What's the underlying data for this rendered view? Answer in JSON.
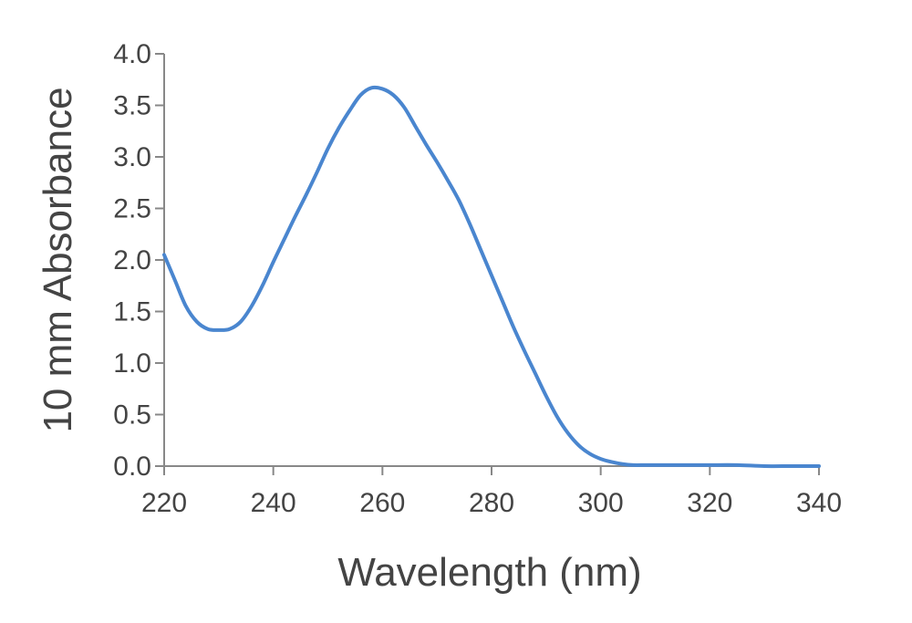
{
  "chart_data": {
    "type": "line",
    "title": "",
    "xlabel": "Wavelength (nm)",
    "ylabel": "10 mm Absorbance",
    "xlim": [
      220,
      340
    ],
    "ylim": [
      0,
      4.0
    ],
    "x_ticks": [
      "220",
      "240",
      "260",
      "280",
      "300",
      "320",
      "340"
    ],
    "y_ticks": [
      "0.0",
      "0.5",
      "1.0",
      "1.5",
      "2.0",
      "2.5",
      "3.0",
      "3.5",
      "4.0"
    ],
    "grid": false,
    "legend": "none",
    "series": [
      {
        "color": "#4a86cf",
        "x": [
          220,
          222,
          224,
          226,
          228,
          230,
          232,
          234,
          236,
          238,
          240,
          242,
          244,
          246,
          248,
          250,
          252,
          254,
          256,
          258,
          260,
          262,
          264,
          266,
          268,
          270,
          272,
          274,
          276,
          278,
          280,
          282,
          284,
          286,
          288,
          290,
          292,
          294,
          296,
          298,
          300,
          302,
          304,
          306,
          308,
          310,
          312,
          314,
          316,
          318,
          320,
          325,
          330,
          335,
          340
        ],
        "y": [
          2.05,
          1.8,
          1.55,
          1.4,
          1.33,
          1.32,
          1.33,
          1.4,
          1.55,
          1.75,
          1.98,
          2.2,
          2.42,
          2.63,
          2.85,
          3.08,
          3.28,
          3.45,
          3.6,
          3.67,
          3.66,
          3.6,
          3.48,
          3.3,
          3.12,
          2.95,
          2.77,
          2.58,
          2.35,
          2.1,
          1.85,
          1.6,
          1.35,
          1.12,
          0.9,
          0.68,
          0.48,
          0.32,
          0.2,
          0.12,
          0.07,
          0.04,
          0.02,
          0.01,
          0.01,
          0.01,
          0.01,
          0.01,
          0.01,
          0.01,
          0.01,
          0.01,
          0.0,
          0.0,
          0.0
        ]
      }
    ]
  }
}
